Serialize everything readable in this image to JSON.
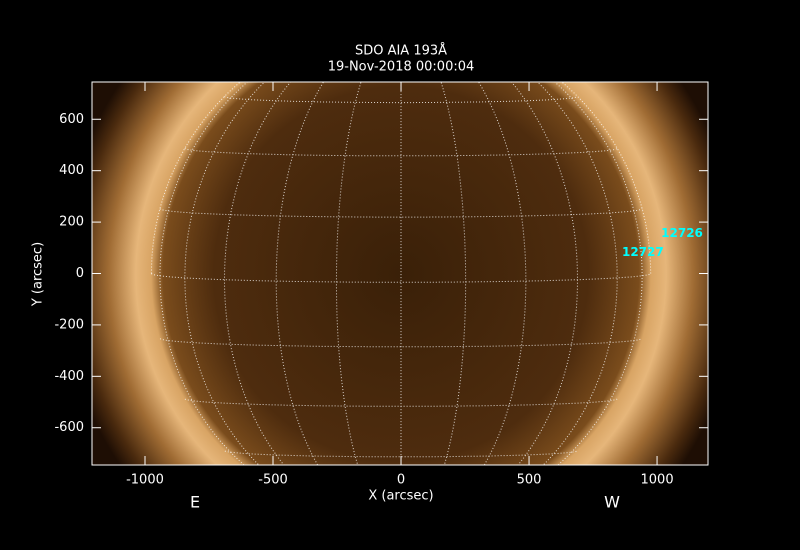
{
  "chart_data": {
    "type": "image",
    "title": "SDO AIA 193Å",
    "subtitle": "19-Nov-2018 00:00:04",
    "xlabel": "X (arcsec)",
    "ylabel": "Y (arcsec)",
    "xlim": [
      -1207,
      1199
    ],
    "ylim": [
      -745,
      745
    ],
    "xticks": [
      -1000,
      -500,
      0,
      500,
      1000
    ],
    "yticks": [
      -600,
      -400,
      -200,
      0,
      200,
      400,
      600
    ],
    "annotations": [
      {
        "text": "12726",
        "x": 1016,
        "y": 156,
        "color": "#00ffff"
      },
      {
        "text": "12727",
        "x": 863,
        "y": 82,
        "color": "#00ffff"
      }
    ],
    "east_label": "E",
    "west_label": "W"
  }
}
